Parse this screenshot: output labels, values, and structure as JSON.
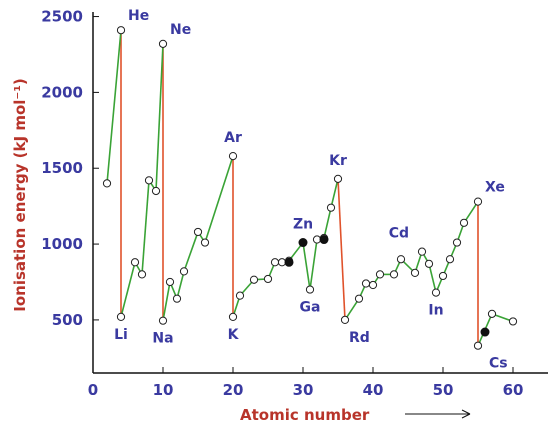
{
  "chart_data": {
    "type": "line",
    "xlabel": "Atomic number",
    "ylabel": "Ionisation energy (kJ mol⁻¹)",
    "xlim": [
      0,
      65
    ],
    "ylim": [
      150,
      2530
    ],
    "x_ticks": [
      0,
      10,
      20,
      30,
      40,
      50,
      60
    ],
    "y_ticks": [
      500,
      1000,
      1500,
      2000,
      2500
    ],
    "series": [
      {
        "points": [
          [
            2,
            1400
          ],
          [
            4,
            2410
          ],
          [
            4,
            520
          ],
          [
            6,
            880
          ],
          [
            7,
            800
          ],
          [
            8,
            1420
          ],
          [
            9,
            1350
          ],
          [
            10,
            2320
          ],
          [
            10,
            495
          ],
          [
            11,
            750
          ],
          [
            12,
            640
          ],
          [
            13,
            820
          ],
          [
            15,
            1080
          ],
          [
            16,
            1010
          ],
          [
            20,
            1580
          ],
          [
            20,
            520
          ],
          [
            21,
            660
          ],
          [
            23,
            765
          ],
          [
            25,
            770
          ],
          [
            26,
            880
          ],
          [
            27,
            880
          ],
          [
            28,
            890
          ],
          [
            30,
            1010
          ],
          [
            31,
            700
          ],
          [
            32,
            1030
          ],
          [
            33,
            1040
          ],
          [
            34,
            1240
          ],
          [
            35,
            1430
          ],
          [
            36,
            500
          ],
          [
            38,
            640
          ],
          [
            39,
            740
          ],
          [
            40,
            730
          ],
          [
            41,
            800
          ],
          [
            43,
            800
          ],
          [
            44,
            900
          ],
          [
            46,
            810
          ],
          [
            47,
            950
          ],
          [
            48,
            870
          ],
          [
            49,
            680
          ],
          [
            50,
            790
          ],
          [
            51,
            900
          ],
          [
            52,
            1010
          ],
          [
            53,
            1140
          ],
          [
            55,
            1280
          ],
          [
            55,
            330
          ],
          [
            57,
            540
          ],
          [
            60,
            490
          ]
        ],
        "filled_points": [
          [
            28,
            880
          ],
          [
            30,
            1010
          ],
          [
            33,
            1030
          ],
          [
            56,
            420
          ]
        ],
        "drop_segments": [
          [
            4,
            2410,
            4,
            520
          ],
          [
            10,
            2320,
            10,
            495
          ],
          [
            20,
            1580,
            20,
            520
          ],
          [
            35,
            1430,
            36,
            500
          ],
          [
            55,
            1280,
            55,
            330
          ]
        ]
      }
    ],
    "annotations": [
      {
        "text": "He",
        "x": 4,
        "y": 2410,
        "pos": "upper-right"
      },
      {
        "text": "Ne",
        "x": 10,
        "y": 2320,
        "pos": "upper-right"
      },
      {
        "text": "Ar",
        "x": 20,
        "y": 1580,
        "pos": "above"
      },
      {
        "text": "Kr",
        "x": 35,
        "y": 1430,
        "pos": "above"
      },
      {
        "text": "Xe",
        "x": 55,
        "y": 1280,
        "pos": "upper-right"
      },
      {
        "text": "Li",
        "x": 4,
        "y": 520,
        "pos": "below"
      },
      {
        "text": "Na",
        "x": 10,
        "y": 495,
        "pos": "below"
      },
      {
        "text": "K",
        "x": 20,
        "y": 520,
        "pos": "below"
      },
      {
        "text": "Rd",
        "x": 36,
        "y": 500,
        "pos": "below-right"
      },
      {
        "text": "Cs",
        "x": 56,
        "y": 330,
        "pos": "below-right"
      },
      {
        "text": "Zn",
        "x": 30,
        "y": 1010,
        "pos": "above"
      },
      {
        "text": "Ga",
        "x": 31,
        "y": 700,
        "pos": "below"
      },
      {
        "text": "Cd",
        "x": 46,
        "y": 950,
        "pos": "above-left"
      },
      {
        "text": "In",
        "x": 49,
        "y": 680,
        "pos": "below"
      }
    ],
    "colors": {
      "line": "#3aa336",
      "drop": "#e0522b",
      "text": "#3a3aa0",
      "title": "#b8342a",
      "axis": "#111111"
    }
  }
}
